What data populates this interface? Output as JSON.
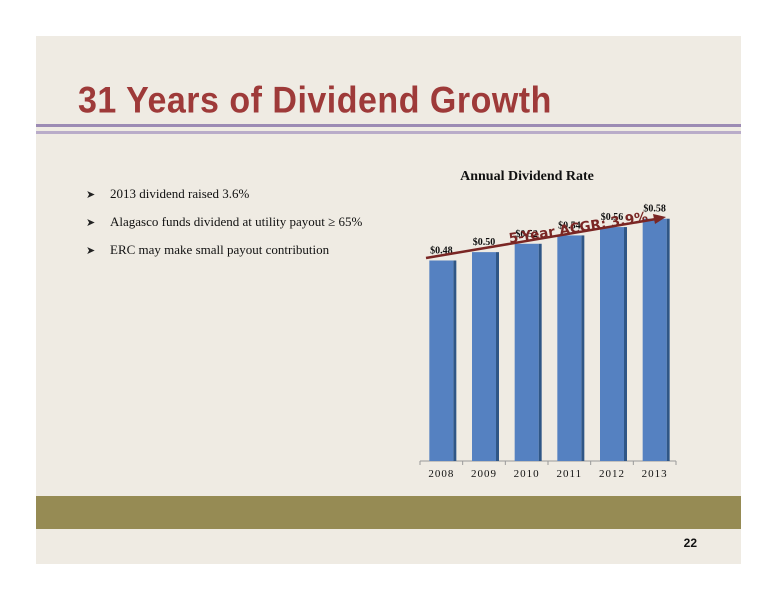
{
  "slide": {
    "title": "31 Years of Dividend Growth",
    "bullets": [
      "2013 dividend raised 3.6%",
      "Alagasco funds dividend at utility payout ≥ 65%",
      "ERC may make small payout contribution"
    ],
    "bullet_icon": "arrowhead-bullet-icon",
    "page_number": "22"
  },
  "chart_data": {
    "type": "bar",
    "title": "Annual Dividend Rate",
    "categories": [
      "2008",
      "2009",
      "2010",
      "2011",
      "2012",
      "2013"
    ],
    "values": [
      0.48,
      0.5,
      0.52,
      0.54,
      0.56,
      0.58
    ],
    "data_labels": [
      "$0.48",
      "$0.50",
      "$0.52",
      "$0.54",
      "$0.56",
      "$0.58"
    ],
    "annotation": "5-Year ACGR: 3.9%",
    "ylim": [
      0,
      0.62
    ],
    "grid": false,
    "bar_color": "#5581c1",
    "bar_side_color": "#2f5686",
    "annotation_color": "#7a2624"
  },
  "colors": {
    "background": "#efebe3",
    "title": "#9e3a39",
    "rule_primary": "#9c8bb4",
    "rule_secondary": "#b9acc9",
    "bottom_band": "#968b54"
  }
}
